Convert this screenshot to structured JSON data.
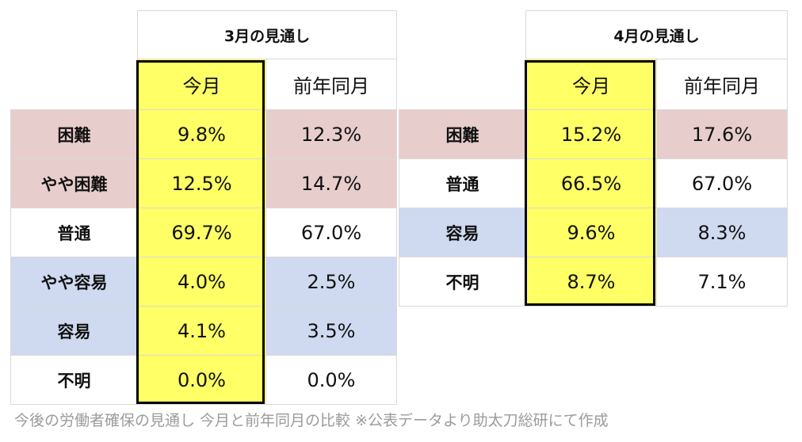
{
  "march": {
    "title": "3月の見通し",
    "col_current": "今月",
    "col_prev": "前年同月",
    "rows": [
      {
        "label": "困難",
        "current": "9.8%",
        "prev": "12.3%",
        "category": "pink"
      },
      {
        "label": "やや困難",
        "current": "12.5%",
        "prev": "14.7%",
        "category": "pink"
      },
      {
        "label": "普通",
        "current": "69.7%",
        "prev": "67.0%",
        "category": "white"
      },
      {
        "label": "やや容易",
        "current": "4.0%",
        "prev": "2.5%",
        "category": "blue"
      },
      {
        "label": "容易",
        "current": "4.1%",
        "prev": "3.5%",
        "category": "blue"
      },
      {
        "label": "不明",
        "current": "0.0%",
        "prev": "0.0%",
        "category": "white"
      }
    ]
  },
  "april": {
    "title": "4月の見通し",
    "col_current": "今月",
    "col_prev": "前年同月",
    "rows": [
      {
        "label": "困難",
        "current": "15.2%",
        "prev": "17.6%",
        "category": "pink"
      },
      {
        "label": "普通",
        "current": "66.5%",
        "prev": "67.0%",
        "category": "white"
      },
      {
        "label": "容易",
        "current": "9.6%",
        "prev": "8.3%",
        "category": "blue"
      },
      {
        "label": "不明",
        "current": "8.7%",
        "prev": "7.1%",
        "category": "white"
      }
    ]
  },
  "colors": {
    "difficult": "#e8cdcd",
    "easy": "#cfdaf1",
    "highlight": "#ffff66"
  },
  "caption": "今後の労働者確保の見通し 今月と前年同月の比較 ※公表データより助太刀総研にて作成"
}
